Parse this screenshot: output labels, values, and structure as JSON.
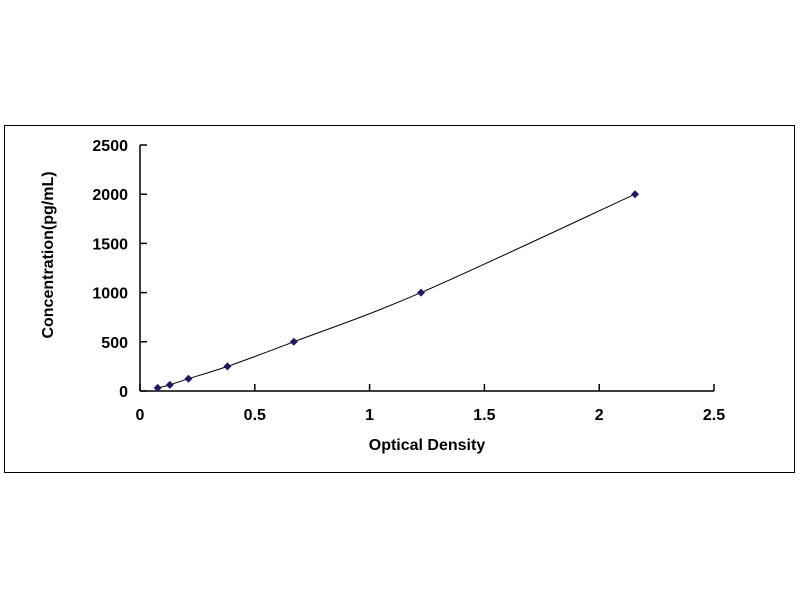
{
  "chart_data": {
    "type": "scatter",
    "title": "",
    "xlabel": "Optical Density",
    "ylabel": "Concentration(pg/mL)",
    "xlim": [
      0,
      2.5
    ],
    "ylim": [
      0,
      2500
    ],
    "xticks": [
      "0",
      "0.5",
      "1",
      "1.5",
      "2",
      "2.5"
    ],
    "yticks": [
      "0",
      "500",
      "1000",
      "1500",
      "2000",
      "2500"
    ],
    "grid": false,
    "legend": "none",
    "trendline": true,
    "colors": {
      "marker": "#1a1a5e",
      "line": "#000000"
    },
    "series": [
      {
        "x": [
          0.077,
          0.13,
          0.211,
          0.381,
          0.67,
          1.224,
          2.156
        ],
        "y": [
          31.25,
          62.5,
          125,
          250,
          500,
          1000,
          2000
        ]
      }
    ]
  }
}
